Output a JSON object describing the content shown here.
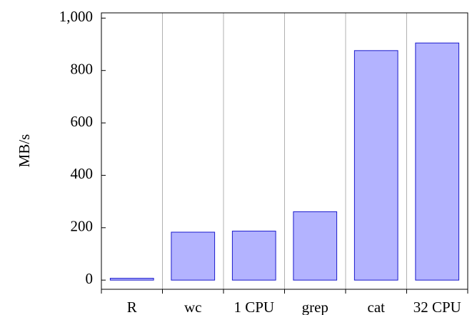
{
  "chart_data": {
    "type": "bar",
    "ylabel": "MB/s",
    "categories": [
      "R",
      "wc",
      "1 CPU",
      "grep",
      "cat",
      "32 CPU"
    ],
    "values": [
      7,
      183,
      187,
      261,
      876,
      905
    ],
    "color": "#b3b3ff",
    "edge_color": "#1a1acc",
    "ylim": [
      -35,
      1020
    ],
    "yticks": [
      0,
      200,
      400,
      600,
      800,
      {
        "value": 1000,
        "label": "1,000"
      }
    ]
  }
}
